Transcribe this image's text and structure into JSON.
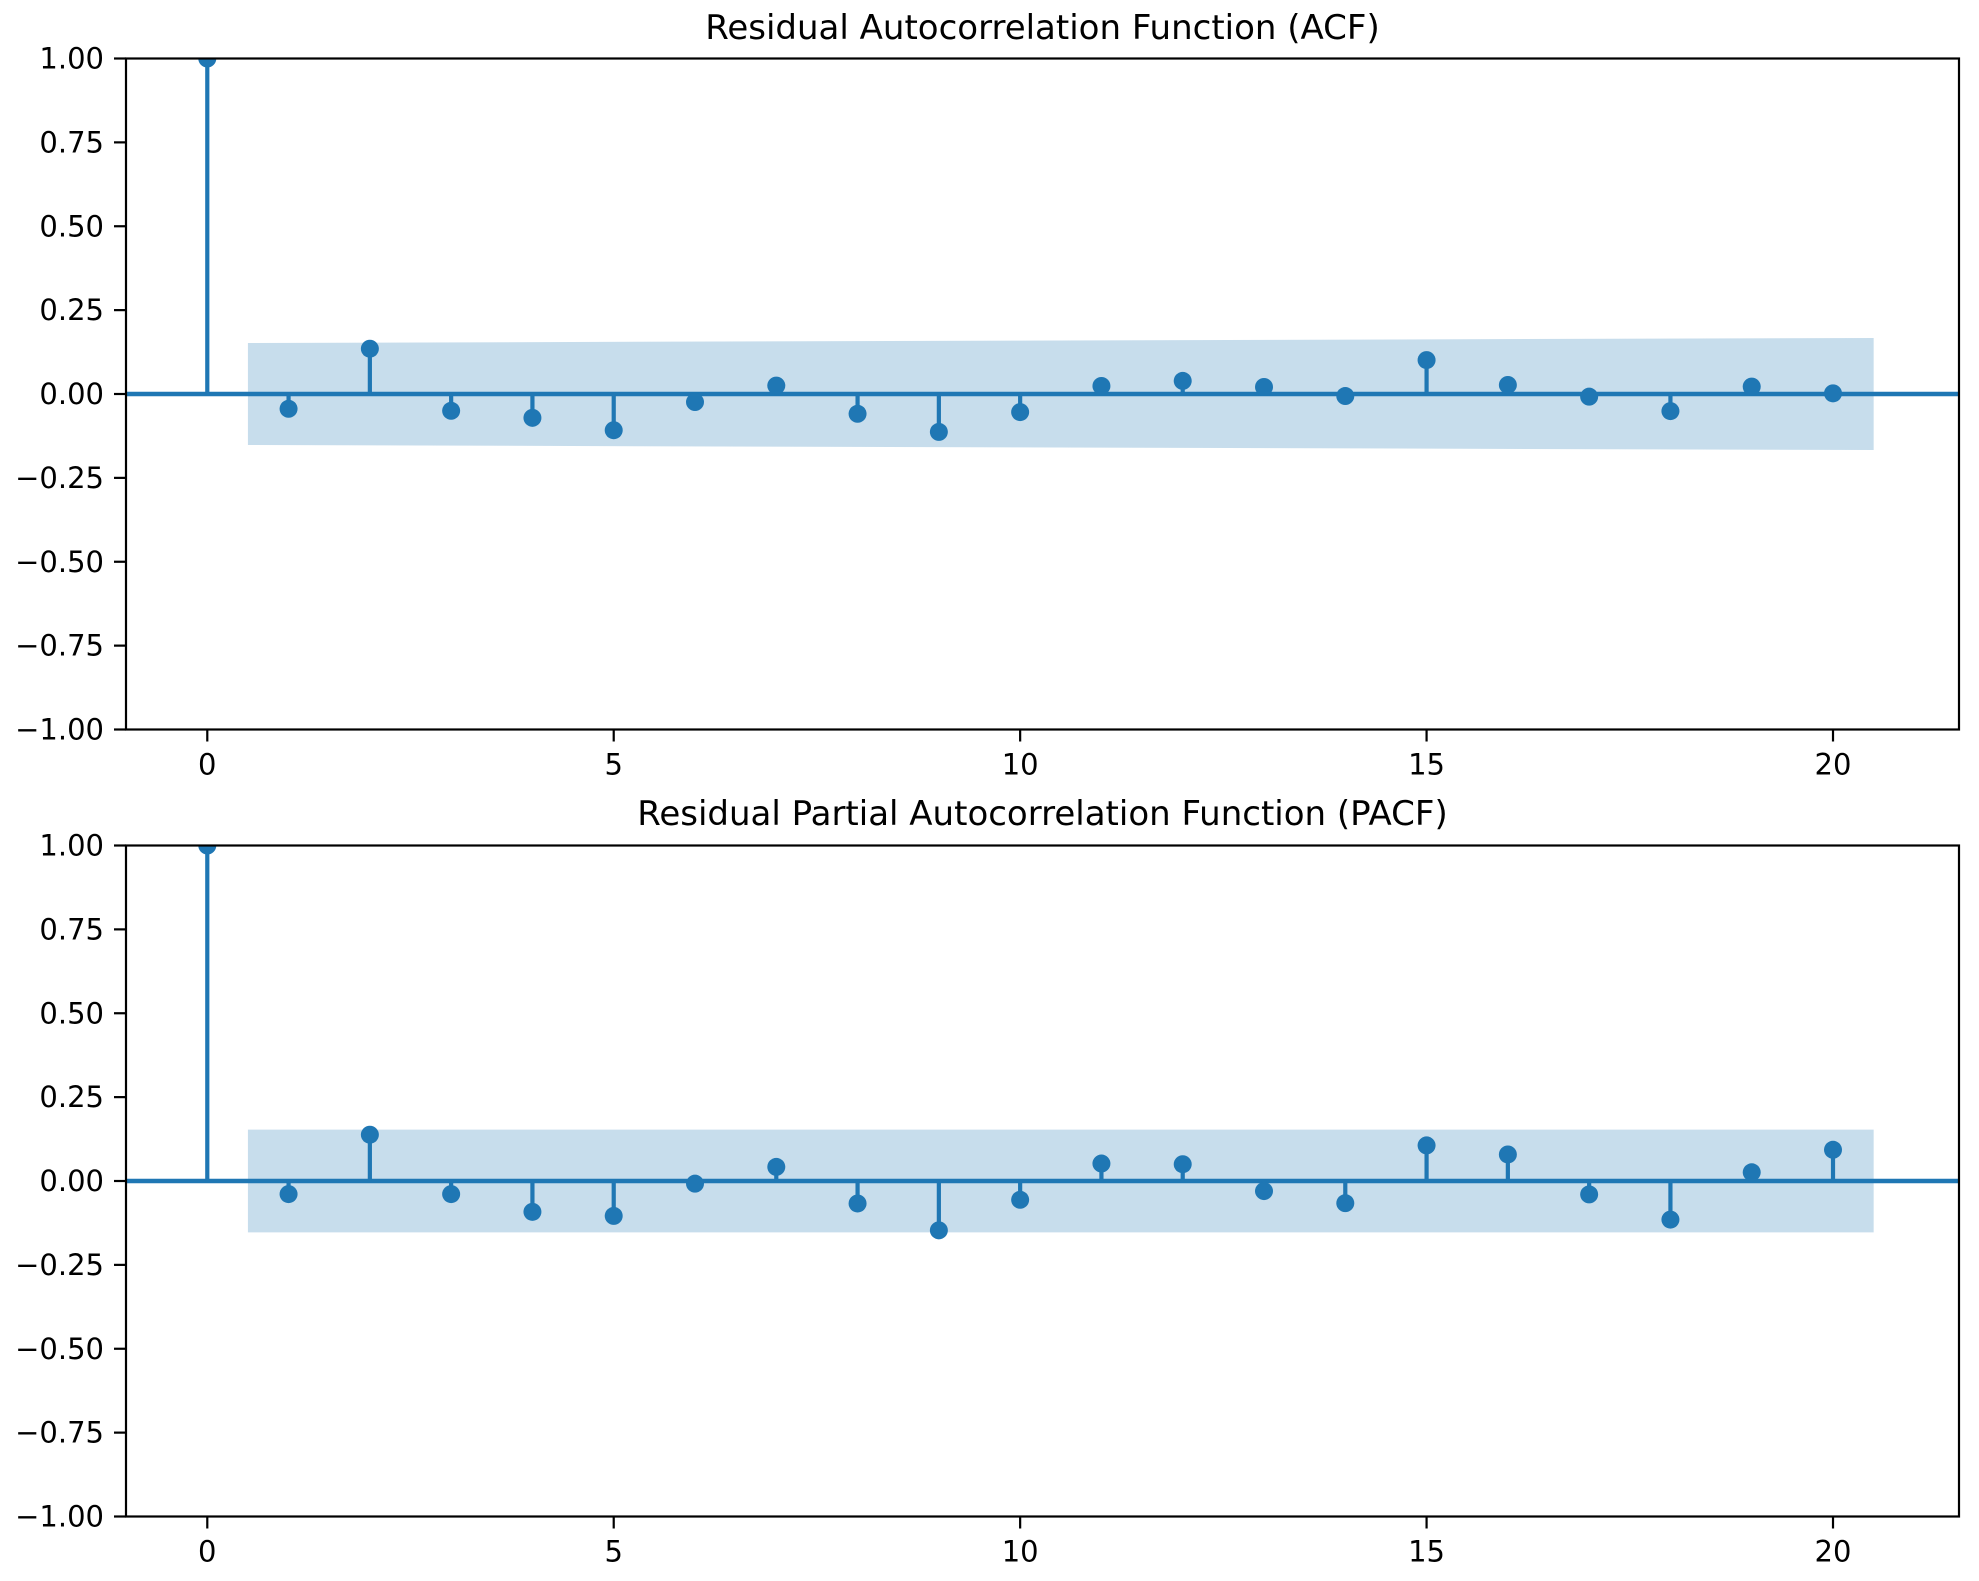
{
  "figure": {
    "background": "#ffffff",
    "accent_color": "#1f77b4",
    "axis_color": "#000000"
  },
  "chart_data": [
    {
      "type": "stem",
      "title": "Residual Autocorrelation Function (ACF)",
      "xlabel": "",
      "ylabel": "",
      "x": [
        0,
        1,
        2,
        3,
        4,
        5,
        6,
        7,
        8,
        9,
        10,
        11,
        12,
        13,
        14,
        15,
        16,
        17,
        18,
        19,
        20
      ],
      "values": [
        1.0,
        -0.044,
        0.135,
        -0.05,
        -0.071,
        -0.108,
        -0.024,
        0.025,
        -0.059,
        -0.113,
        -0.054,
        0.024,
        0.039,
        0.021,
        -0.006,
        0.101,
        0.027,
        -0.008,
        -0.051,
        0.022,
        0.002
      ],
      "xlim": [
        -1.0,
        21.55
      ],
      "ylim": [
        -1.0,
        1.0
      ],
      "xticks": [
        0,
        5,
        10,
        15,
        20
      ],
      "xticklabels": [
        "0",
        "5",
        "10",
        "15",
        "20"
      ],
      "yticks": [
        1.0,
        0.75,
        0.5,
        0.25,
        0.0,
        -0.25,
        -0.5,
        -0.75,
        -1.0
      ],
      "yticklabels": [
        "1.00",
        "0.75",
        "0.50",
        "0.25",
        "0.00",
        "−0.25",
        "−0.50",
        "−0.75",
        "−1.00"
      ],
      "confidence_band": {
        "x_start": 0.5,
        "x_end": 20.5,
        "half_width_start": 0.152,
        "half_width_end": 0.167
      },
      "grid": false,
      "legend": null,
      "colors": {
        "stem": "#1f77b4",
        "marker": "#1f77b4",
        "zero_line": "#1f77b4",
        "band_fill": "#1f77b4",
        "band_opacity": 0.25,
        "spine": "#000000",
        "tick_text": "#000000"
      }
    },
    {
      "type": "stem",
      "title": "Residual Partial Autocorrelation Function (PACF)",
      "xlabel": "",
      "ylabel": "",
      "x": [
        0,
        1,
        2,
        3,
        4,
        5,
        6,
        7,
        8,
        9,
        10,
        11,
        12,
        13,
        14,
        15,
        16,
        17,
        18,
        19,
        20
      ],
      "values": [
        1.0,
        -0.039,
        0.138,
        -0.039,
        -0.092,
        -0.104,
        -0.008,
        0.042,
        -0.067,
        -0.147,
        -0.056,
        0.052,
        0.05,
        -0.03,
        -0.066,
        0.106,
        0.079,
        -0.04,
        -0.115,
        0.026,
        0.093
      ],
      "xlim": [
        -1.0,
        21.55
      ],
      "ylim": [
        -1.0,
        1.0
      ],
      "xticks": [
        0,
        5,
        10,
        15,
        20
      ],
      "xticklabels": [
        "0",
        "5",
        "10",
        "15",
        "20"
      ],
      "yticks": [
        1.0,
        0.75,
        0.5,
        0.25,
        0.0,
        -0.25,
        -0.5,
        -0.75,
        -1.0
      ],
      "yticklabels": [
        "1.00",
        "0.75",
        "0.50",
        "0.25",
        "0.00",
        "−0.25",
        "−0.50",
        "−0.75",
        "−1.00"
      ],
      "confidence_band": {
        "x_start": 0.5,
        "x_end": 20.5,
        "half_width_start": 0.153,
        "half_width_end": 0.153
      },
      "grid": false,
      "legend": null,
      "colors": {
        "stem": "#1f77b4",
        "marker": "#1f77b4",
        "zero_line": "#1f77b4",
        "band_fill": "#1f77b4",
        "band_opacity": 0.25,
        "spine": "#000000",
        "tick_text": "#000000"
      }
    }
  ]
}
